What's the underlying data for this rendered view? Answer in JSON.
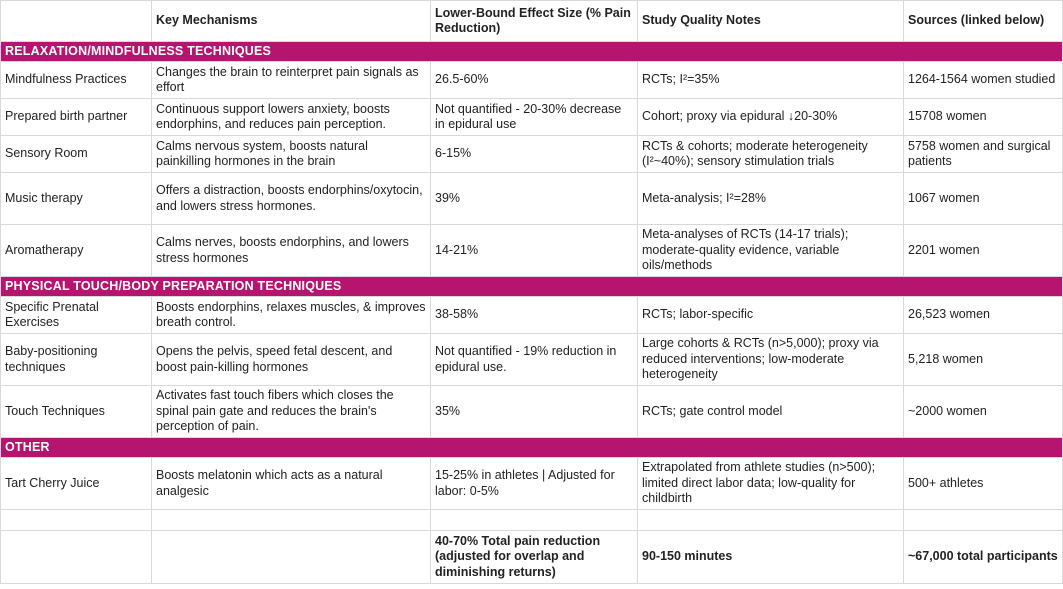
{
  "headers": [
    "",
    "Key Mechanisms",
    "Lower-Bound Effect Size (% Pain Reduction)",
    "Study Quality Notes",
    "Sources (linked below)"
  ],
  "sections": [
    {
      "title": "RELAXATION/MINDFULNESS TECHNIQUES",
      "rows": [
        [
          "Mindfulness Practices",
          "Changes the brain to reinterpret pain signals as effort",
          "26.5-60%",
          "RCTs; I²=35%",
          "1264-1564 women studied"
        ],
        [
          "Prepared birth partner",
          "Continuous support lowers anxiety, boosts endorphins, and reduces pain perception.",
          "Not quantified - 20-30% decrease in epidural use",
          "Cohort; proxy via epidural ↓20-30%",
          "15708 women"
        ],
        [
          "Sensory Room",
          "Calms nervous system, boosts natural painkilling hormones in the brain",
          "6-15%",
          "RCTs & cohorts; moderate heterogeneity (I²~40%); sensory stimulation trials",
          "5758 women and surgical patients"
        ],
        [
          "Music therapy",
          "Offers a distraction, boosts endorphins/oxytocin, and lowers stress hormones.",
          "39%",
          "Meta-analysis; I²=28%",
          "1067 women"
        ],
        [
          "Aromatherapy",
          "Calms nerves, boosts endorphins, and lowers stress hormones",
          "14-21%",
          "Meta-analyses of RCTs (14-17 trials); moderate-quality evidence, variable oils/methods",
          "2201 women"
        ]
      ]
    },
    {
      "title": "PHYSICAL TOUCH/BODY PREPARATION TECHNIQUES",
      "rows": [
        [
          "Specific Prenatal Exercises",
          "Boosts endorphins, relaxes muscles, & improves breath control.",
          "38-58%",
          "RCTs; labor-specific",
          "26,523 women"
        ],
        [
          "Baby-positioning techniques",
          "Opens the pelvis, speed fetal descent, and boost pain-killing hormones",
          "Not quantified - 19% reduction in epidural use.",
          "Large cohorts & RCTs (n>5,000); proxy via reduced interventions; low-moderate heterogeneity",
          "5,218 women"
        ],
        [
          "Touch Techniques",
          "Activates fast touch fibers which closes the spinal pain gate and reduces the brain's perception of pain.",
          "35%",
          "RCTs; gate control model",
          "~2000 women"
        ]
      ]
    },
    {
      "title": "OTHER",
      "rows": [
        [
          "Tart Cherry Juice",
          "Boosts melatonin which acts as a natural analgesic",
          "15-25% in athletes | Adjusted for labor: 0-5%",
          "Extrapolated from athlete studies (n>500); limited direct labor data; low-quality for childbirth",
          "500+ athletes"
        ]
      ]
    }
  ],
  "summary": [
    "",
    "",
    "40-70% Total pain reduction (adjusted for overlap and diminishing returns)",
    "90-150 minutes",
    "~67,000 total participants"
  ]
}
